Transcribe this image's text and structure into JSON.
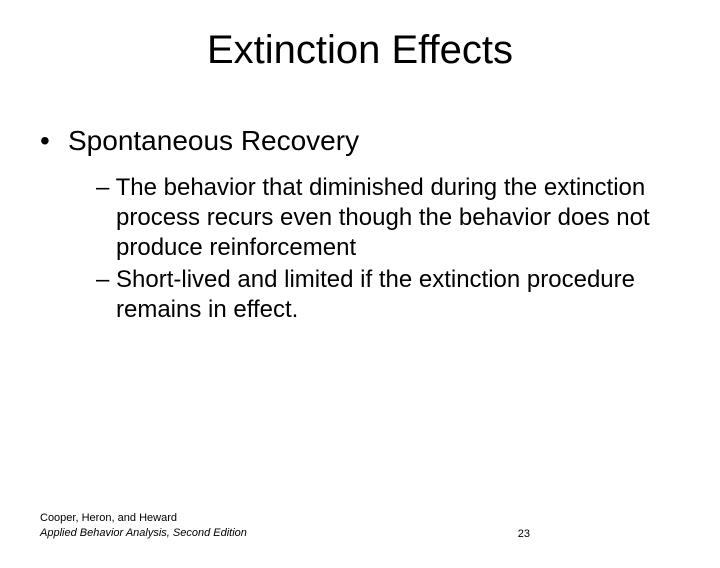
{
  "title": "Extinction Effects",
  "level1": {
    "bullet": "•",
    "text": "Spontaneous Recovery"
  },
  "level2": {
    "dash": "–",
    "items": [
      "The behavior that diminished during the extinction process recurs even though the behavior does not produce reinforcement",
      "Short-lived and limited if the extinction procedure remains in effect."
    ]
  },
  "footer": {
    "authors": "Cooper, Heron, and Heward",
    "book": "Applied Behavior Analysis, Second Edition",
    "page": "23"
  },
  "style": {
    "background": "#ffffff",
    "text_color": "#000000",
    "title_fontsize": 40,
    "l1_fontsize": 28,
    "l2_fontsize": 24,
    "footer_fontsize": 11
  }
}
